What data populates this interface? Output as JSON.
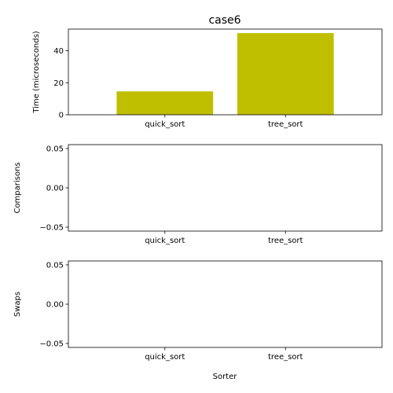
{
  "chart_data": [
    {
      "type": "bar",
      "title": "case6",
      "xlabel": "",
      "ylabel": "Time (microseconds)",
      "categories": [
        "quick_sort",
        "tree_sort"
      ],
      "values": [
        14.6,
        51.0
      ],
      "ylim": [
        0,
        53.5
      ],
      "yticks": [
        0,
        20,
        40
      ],
      "ytick_labels": [
        "0",
        "20",
        "40"
      ],
      "bar_color": "#bfbf00",
      "grid": false
    },
    {
      "type": "bar",
      "title": "",
      "xlabel": "",
      "ylabel": "Comparisons",
      "categories": [
        "quick_sort",
        "tree_sort"
      ],
      "values": [
        0,
        0
      ],
      "ylim": [
        -0.055,
        0.055
      ],
      "yticks": [
        0.05,
        0.0,
        -0.05
      ],
      "ytick_labels": [
        "0.05",
        "0.00",
        "−0.05"
      ],
      "bar_color": "#bfbf00",
      "grid": false
    },
    {
      "type": "bar",
      "title": "",
      "xlabel": "Sorter",
      "ylabel": "Swaps",
      "categories": [
        "quick_sort",
        "tree_sort"
      ],
      "values": [
        0,
        0
      ],
      "ylim": [
        -0.055,
        0.055
      ],
      "yticks": [
        0.05,
        0.0,
        -0.05
      ],
      "ytick_labels": [
        "0.05",
        "0.00",
        "−0.05"
      ],
      "bar_color": "#bfbf00",
      "grid": false
    }
  ]
}
